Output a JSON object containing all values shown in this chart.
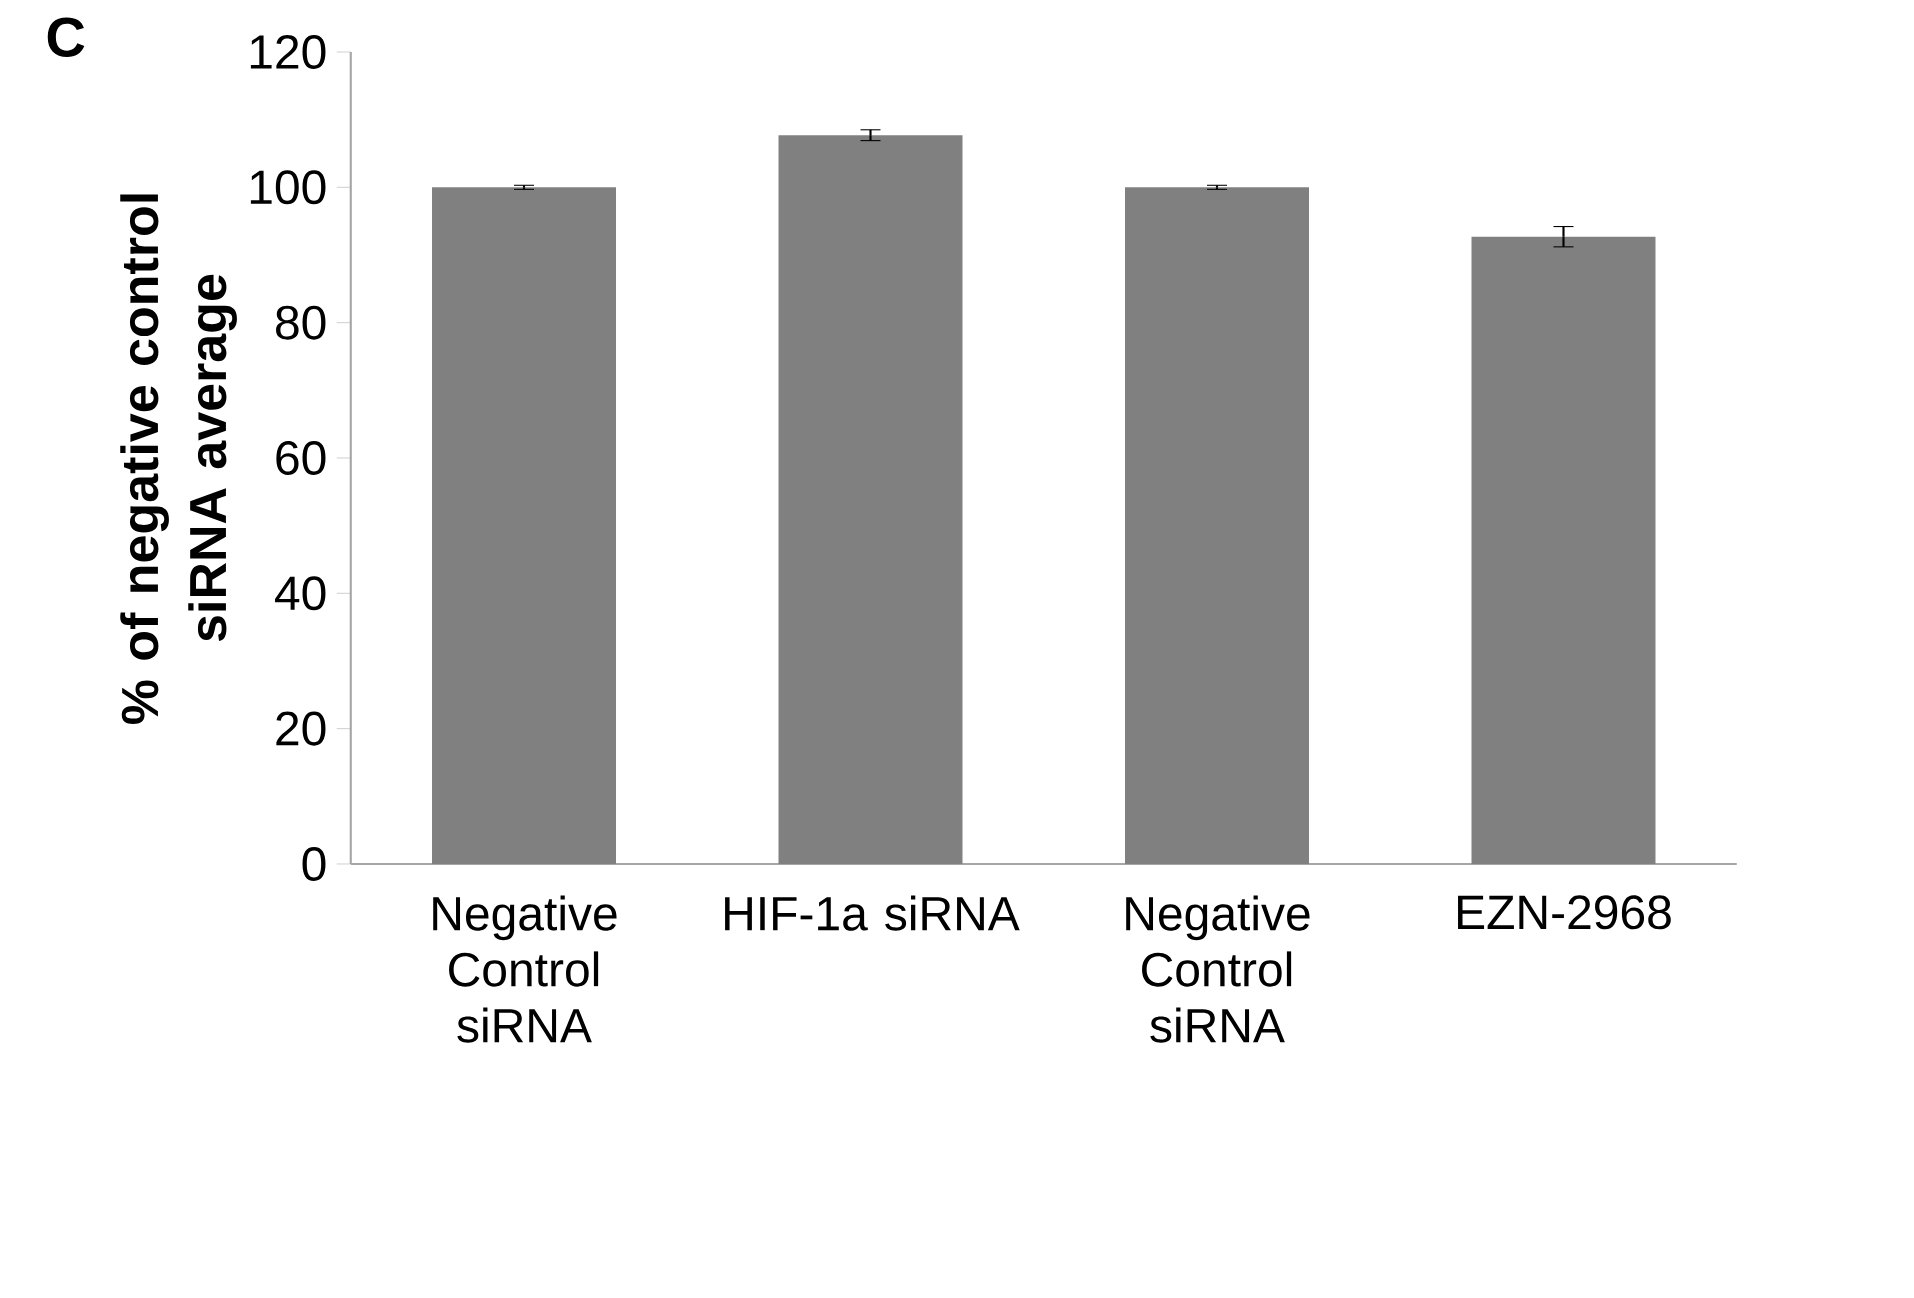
{
  "chart_data": {
    "type": "bar",
    "ylabel": "% of negative control siRNA average",
    "annotations": [
      "C"
    ],
    "categories": [
      "Negative Control siRNA",
      "HIF-1a siRNA",
      "Negative Control siRNA",
      "EZN-2968"
    ],
    "values": [
      100,
      107.7,
      100,
      92.7
    ],
    "errors": [
      0.3,
      0.8,
      0.3,
      1.5
    ],
    "color": "#808080",
    "ylim": [
      0,
      120
    ],
    "yticks": [
      0,
      20,
      40,
      60,
      80,
      100,
      120
    ],
    "grid": false
  }
}
